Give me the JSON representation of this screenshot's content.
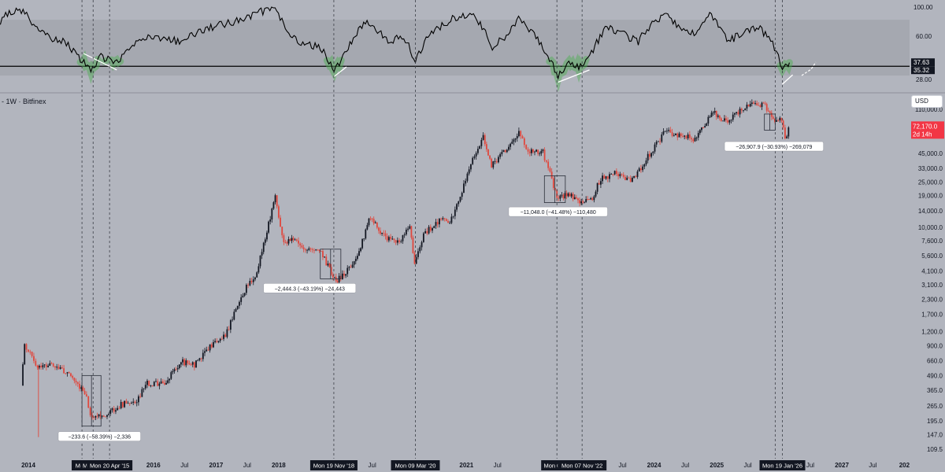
{
  "symbol_label": "- 1W · Bitfinex",
  "currency_select": "USD",
  "colors": {
    "background": "#b2b5be",
    "rsi_band": "#a3a6ae",
    "up": "#131722",
    "down": "#e0473d",
    "rsi_line": "#000000",
    "oversold_fill": "#4caf50",
    "price_tag": "#f23645",
    "trendline": "#ffffff"
  },
  "chart_data": [
    {
      "type": "line",
      "title": "",
      "ylim": [
        20,
        100
      ],
      "y_scale": "log",
      "y_ticks": [
        "100.00",
        "60.00",
        "28.00"
      ],
      "reference_line": 35.32,
      "value_labels": [
        "37.63",
        "35.32"
      ],
      "band": [
        30,
        80
      ],
      "series": [
        {
          "x": [
            "2013-06-01",
            "2013-09-01",
            "2013-12-01",
            "2014-02-01",
            "2014-05-01",
            "2014-08-01",
            "2014-11-01",
            "2015-01-01",
            "2015-03-01",
            "2015-06-01",
            "2015-09-01",
            "2015-12-01",
            "2016-06-01",
            "2016-12-01",
            "2017-06-01",
            "2017-12-01",
            "2018-03-01",
            "2018-06-01",
            "2018-09-01",
            "2018-11-20",
            "2019-02-01",
            "2019-06-01",
            "2019-10-01",
            "2020-01-01",
            "2020-03-09",
            "2020-06-01",
            "2020-10-01",
            "2021-02-01",
            "2021-06-01",
            "2021-09-01",
            "2021-11-01",
            "2022-02-01",
            "2022-05-01",
            "2022-06-20",
            "2022-09-01",
            "2022-11-07",
            "2023-01-01",
            "2023-04-01",
            "2023-07-01",
            "2023-10-01",
            "2024-03-01",
            "2024-06-01",
            "2024-09-01",
            "2024-12-01",
            "2025-03-01",
            "2025-06-01",
            "2025-09-01",
            "2025-11-01",
            "2025-12-15",
            "2026-01-19",
            "2026-02-15",
            "2026-03-01"
          ],
          "values": [
            60,
            90,
            95,
            72,
            58,
            55,
            40,
            32,
            42,
            38,
            50,
            60,
            55,
            70,
            80,
            100,
            60,
            52,
            50,
            32,
            45,
            80,
            55,
            60,
            38,
            62,
            80,
            90,
            50,
            60,
            80,
            60,
            40,
            30,
            38,
            34,
            45,
            70,
            62,
            55,
            90,
            70,
            62,
            88,
            55,
            62,
            70,
            58,
            45,
            33,
            36,
            37.63
          ]
        }
      ]
    },
    {
      "type": "line",
      "title": "",
      "y_scale": "log",
      "ylim": [
        150,
        200000
      ],
      "y_ticks": [
        "110,000.0",
        "80,000.0",
        "45,000.0",
        "33,000.0",
        "25,000.0",
        "19,000.0",
        "14,000.0",
        "10,000.0",
        "7,600.0",
        "5,600.0",
        "4,100.0",
        "3,100.0",
        "2,300.0",
        "1,700.0",
        "1,200.0",
        "900.0",
        "660.0",
        "490.0",
        "365.0",
        "265.0",
        "195.0",
        "147.0",
        "109.5"
      ],
      "x_ticks": [
        "2014",
        "2016",
        "Jul",
        "2017",
        "Jul",
        "2018",
        "Jul",
        "2020",
        "Jul",
        "2021",
        "Jul",
        "Jul",
        "2024",
        "Jul",
        "2025",
        "Jul",
        "Jul",
        "2027",
        "Jul",
        "202"
      ],
      "date_labels": [
        "Mon",
        "Mon 2",
        "Mon 20 Apr '15",
        "Mon 19 Nov '18",
        "Mon 09 Mar '20",
        "Mon 02 M",
        "Mon 07 Nov '22",
        "Mo",
        "Mon 19 Jan '26"
      ],
      "current_price": "72,170.0",
      "countdown": "2d 14h",
      "measurements": [
        "−233.6 (−58.39%) −2,336",
        "−2,444.3 (−43.19%) −24,443",
        "−11,048.0 (−41.48%) −110,480",
        "−26,907.9 (−30.93%) −269,079"
      ],
      "series": [
        {
          "x": [
            "2013-11-25",
            "2013-12-15",
            "2014-01-06",
            "2014-03-01",
            "2014-06-01",
            "2014-09-01",
            "2014-12-01",
            "2015-01-14",
            "2015-04-20",
            "2015-07-01",
            "2015-10-01",
            "2015-12-01",
            "2016-03-01",
            "2016-06-15",
            "2016-09-01",
            "2016-12-01",
            "2017-03-01",
            "2017-06-01",
            "2017-09-01",
            "2017-12-17",
            "2018-02-05",
            "2018-04-01",
            "2018-06-01",
            "2018-09-01",
            "2018-11-19",
            "2018-12-15",
            "2019-04-01",
            "2019-06-26",
            "2019-09-01",
            "2019-12-01",
            "2020-02-10",
            "2020-03-09",
            "2020-05-01",
            "2020-08-01",
            "2020-10-01",
            "2020-12-01",
            "2021-02-01",
            "2021-04-14",
            "2021-06-01",
            "2021-08-01",
            "2021-11-08",
            "2022-01-01",
            "2022-03-28",
            "2022-05-09",
            "2022-06-18",
            "2022-09-01",
            "2022-11-07",
            "2023-01-01",
            "2023-03-01",
            "2023-06-01",
            "2023-09-01",
            "2023-12-01",
            "2024-03-11",
            "2024-06-01",
            "2024-09-01",
            "2024-12-16",
            "2025-03-01",
            "2025-05-01",
            "2025-07-01",
            "2025-10-06",
            "2025-12-01",
            "2026-01-19",
            "2026-02-09",
            "2026-03-01"
          ],
          "values": [
            400,
            950,
            800,
            600,
            620,
            500,
            350,
            200,
            230,
            270,
            300,
            420,
            410,
            650,
            610,
            900,
            1100,
            2500,
            4000,
            19000,
            7000,
            8000,
            6500,
            6400,
            3700,
            3400,
            5000,
            12500,
            8500,
            7300,
            10000,
            4800,
            8800,
            11500,
            11000,
            19000,
            37000,
            63000,
            35000,
            45000,
            67000,
            47000,
            46000,
            30000,
            18000,
            19500,
            16500,
            17000,
            27000,
            30000,
            26000,
            42000,
            70000,
            65000,
            60000,
            104000,
            85000,
            100000,
            118000,
            124000,
            90000,
            88000,
            62000,
            72170
          ]
        }
      ]
    }
  ]
}
